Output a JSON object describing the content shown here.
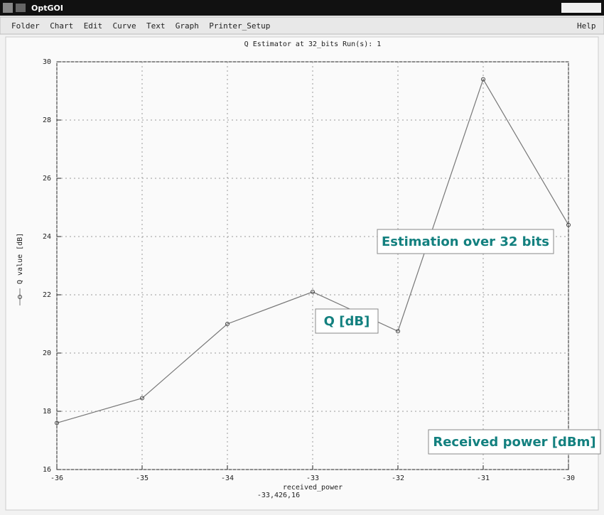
{
  "window": {
    "title": "OptGOI",
    "menu": [
      "Folder",
      "Chart",
      "Edit",
      "Curve",
      "Text",
      "Graph",
      "Printer_Setup"
    ],
    "help": "Help"
  },
  "chart_data": {
    "type": "line",
    "title": "Q Estimator at 32_bits Run(s): 1",
    "x_label": "received_power",
    "cursor_readout": "-33,426,16",
    "x": [
      -36,
      -35,
      -34,
      -33,
      -32,
      -31,
      -30
    ],
    "series": [
      {
        "name": "Q value [dB]",
        "color": "#777777",
        "values": [
          17.6,
          18.45,
          21.0,
          22.1,
          20.75,
          29.4,
          24.4
        ]
      }
    ],
    "xlim": [
      -36,
      -30
    ],
    "xticks": [
      -36,
      -35,
      -34,
      -33,
      -32,
      -31,
      -30
    ],
    "ylim": [
      16,
      30
    ],
    "yticks": [
      16,
      18,
      20,
      22,
      24,
      26,
      28,
      30
    ],
    "grid": true,
    "annotations": [
      "Estimation over 32 bits",
      "Q [dB]",
      "Received power [dBm]"
    ]
  }
}
